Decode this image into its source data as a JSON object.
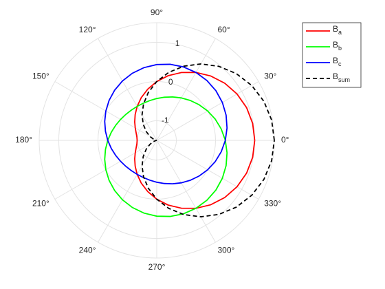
{
  "chart_data": {
    "type": "polar",
    "x": [
      0,
      10,
      20,
      30,
      40,
      50,
      60,
      70,
      80,
      90,
      100,
      110,
      120,
      130,
      140,
      150,
      160,
      170,
      180,
      190,
      200,
      210,
      220,
      230,
      240,
      250,
      260,
      270,
      280,
      290,
      300,
      310,
      320,
      330,
      340,
      350,
      360
    ],
    "series": [
      {
        "name": "B_a",
        "color": "#ff0000",
        "dash": false,
        "values": [
          1,
          0.985,
          0.94,
          0.866,
          0.766,
          0.643,
          0.5,
          0.342,
          0.174,
          0,
          -0.174,
          -0.342,
          -0.5,
          -0.643,
          -0.766,
          -0.866,
          -0.94,
          -0.985,
          -1,
          -0.985,
          -0.94,
          -0.866,
          -0.766,
          -0.643,
          -0.5,
          -0.342,
          -0.174,
          0,
          0.174,
          0.342,
          0.5,
          0.643,
          0.766,
          0.866,
          0.94,
          0.985,
          1
        ]
      },
      {
        "name": "B_b",
        "color": "#00ff00",
        "dash": false,
        "values": [
          0.25,
          0.171,
          0.087,
          0,
          -0.087,
          -0.171,
          -0.25,
          -0.321,
          -0.383,
          -0.433,
          -0.47,
          -0.492,
          -0.5,
          -0.492,
          -0.47,
          -0.433,
          -0.383,
          -0.321,
          -0.25,
          -0.171,
          -0.087,
          0,
          0.087,
          0.171,
          0.25,
          0.321,
          0.383,
          0.433,
          0.47,
          0.492,
          0.5,
          0.492,
          0.47,
          0.433,
          0.383,
          0.321,
          0.25
        ]
      },
      {
        "name": "B_c",
        "color": "#0000ff",
        "dash": false,
        "values": [
          0.25,
          0.321,
          0.383,
          0.433,
          0.47,
          0.492,
          0.5,
          0.492,
          0.47,
          0.433,
          0.383,
          0.321,
          0.25,
          0.171,
          0.087,
          0,
          -0.087,
          -0.171,
          -0.25,
          -0.321,
          -0.383,
          -0.433,
          -0.47,
          -0.492,
          -0.5,
          -0.492,
          -0.47,
          -0.433,
          -0.383,
          -0.321,
          -0.25,
          -0.171,
          -0.087,
          0,
          0.087,
          0.171,
          0.25
        ]
      },
      {
        "name": "B_sum",
        "color": "#000000",
        "dash": true,
        "values": [
          1.5,
          1.477,
          1.41,
          1.299,
          1.149,
          0.964,
          0.75,
          0.513,
          0.26,
          0,
          -0.26,
          -0.513,
          -0.75,
          -0.964,
          -1.149,
          -1.299,
          -1.41,
          -1.477,
          -1.5,
          -1.477,
          -1.41,
          -1.299,
          -1.149,
          -0.964,
          -0.75,
          -0.513,
          -0.26,
          0,
          0.26,
          0.513,
          0.75,
          0.964,
          1.149,
          1.299,
          1.41,
          1.477,
          1.5
        ]
      }
    ],
    "rlim": [
      -1.5,
      1.5
    ],
    "rticks": [
      -1,
      0,
      1
    ],
    "thetaticks": [
      {
        "value": 0,
        "label": "0°"
      },
      {
        "value": 30,
        "label": "30°"
      },
      {
        "value": 60,
        "label": "60°"
      },
      {
        "value": 90,
        "label": "90°"
      },
      {
        "value": 120,
        "label": "120°"
      },
      {
        "value": 150,
        "label": "150°"
      },
      {
        "value": 180,
        "label": "180°"
      },
      {
        "value": 210,
        "label": "210°"
      },
      {
        "value": 240,
        "label": "240°"
      },
      {
        "value": 270,
        "label": "270°"
      },
      {
        "value": 300,
        "label": "300°"
      },
      {
        "value": 330,
        "label": "330°"
      }
    ],
    "grid": true,
    "legend": "northeastoutside"
  }
}
